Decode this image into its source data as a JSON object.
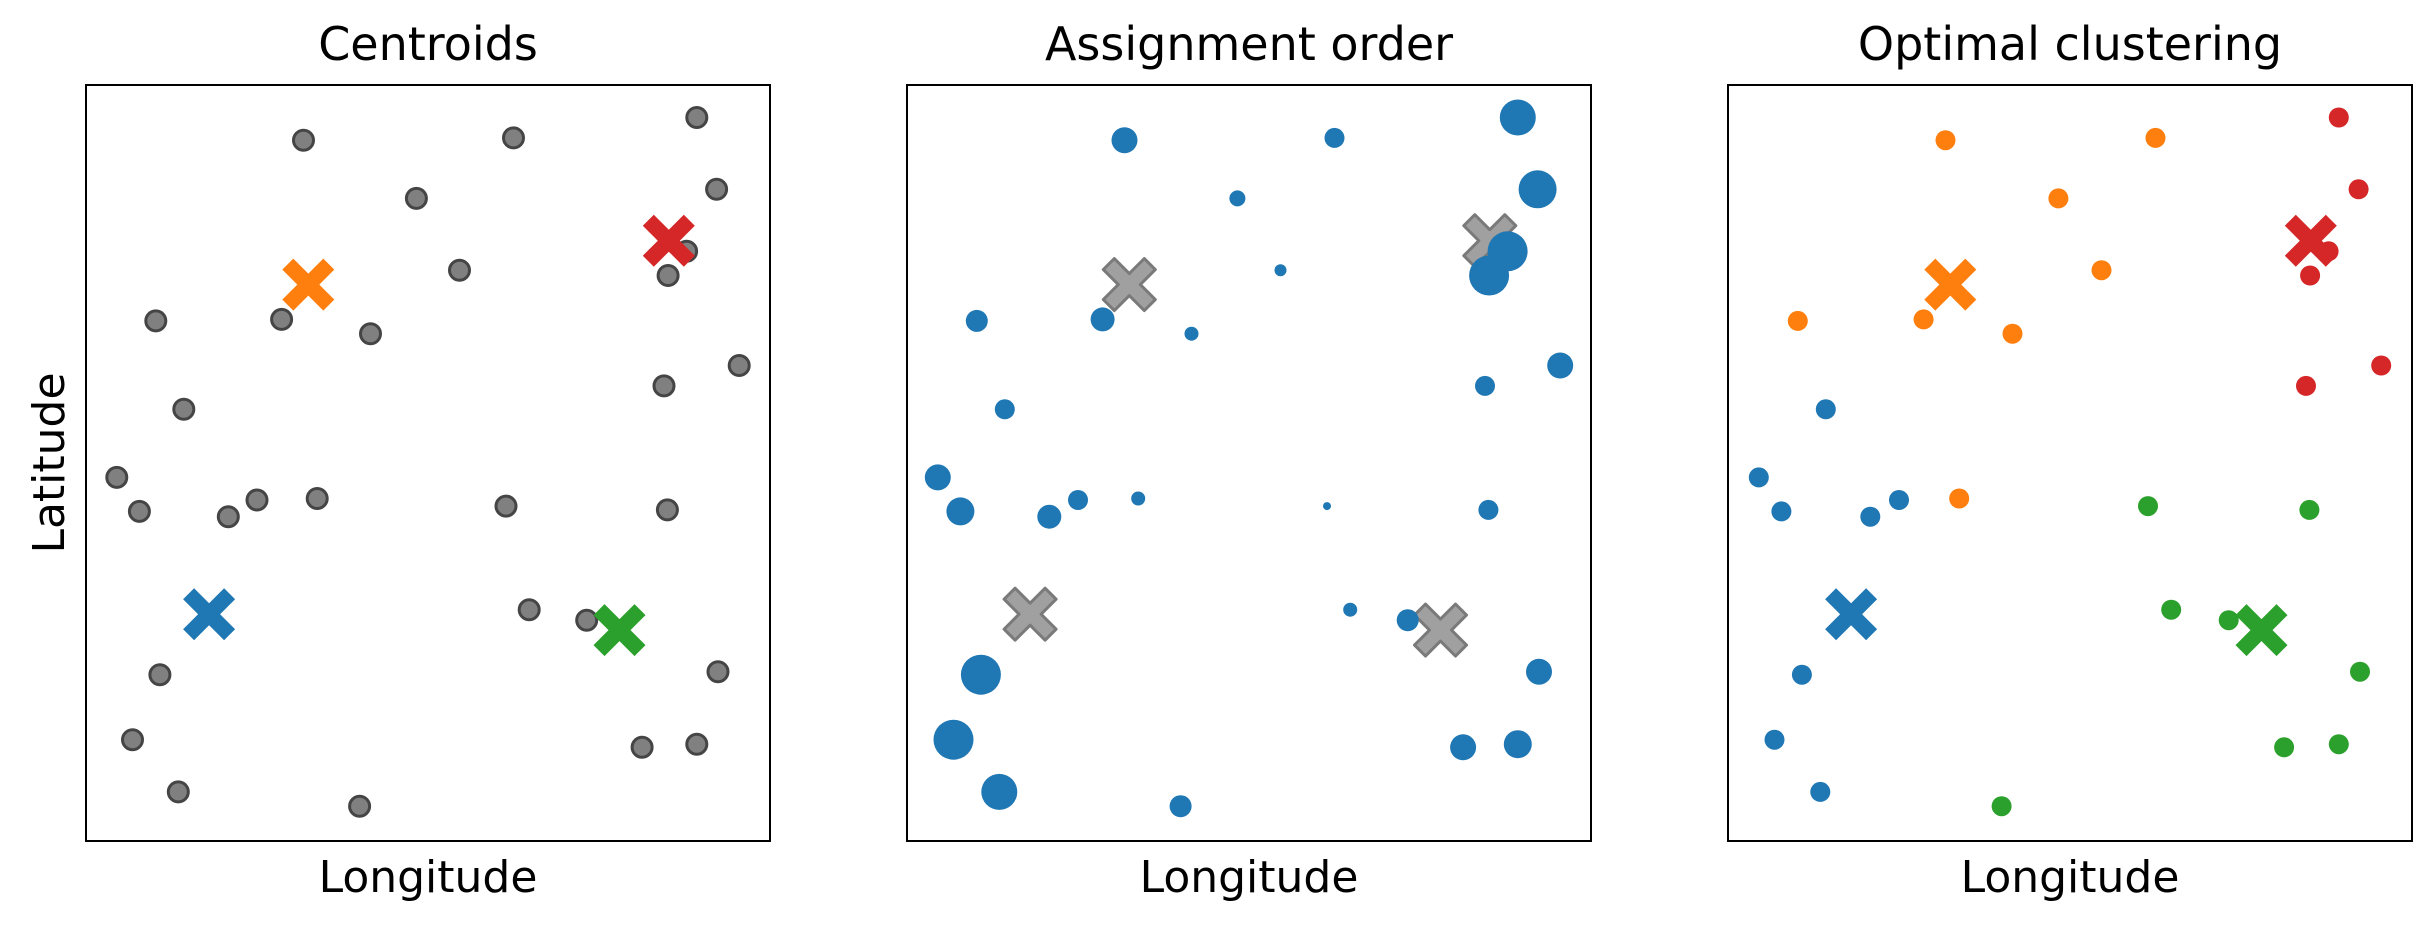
{
  "figure": {
    "background": "#ffffff"
  },
  "chart_data": [
    {
      "type": "scatter",
      "title": "Centroids",
      "xlabel": "Longitude",
      "ylabel": "Latitude",
      "xlim": [
        0,
        1
      ],
      "ylim": [
        0,
        1
      ],
      "grid": false,
      "ticks": false,
      "legend": "none",
      "point_style": "uniform",
      "point_color": "#808080",
      "points": [
        [
          0.318,
          0.927
        ],
        [
          0.625,
          0.93
        ],
        [
          0.893,
          0.957
        ],
        [
          0.483,
          0.85
        ],
        [
          0.922,
          0.862
        ],
        [
          0.102,
          0.688
        ],
        [
          0.286,
          0.69
        ],
        [
          0.416,
          0.671
        ],
        [
          0.546,
          0.755
        ],
        [
          0.851,
          0.748
        ],
        [
          0.878,
          0.78
        ],
        [
          0.143,
          0.571
        ],
        [
          0.845,
          0.602
        ],
        [
          0.955,
          0.629
        ],
        [
          0.045,
          0.481
        ],
        [
          0.078,
          0.436
        ],
        [
          0.208,
          0.429
        ],
        [
          0.25,
          0.451
        ],
        [
          0.338,
          0.453
        ],
        [
          0.614,
          0.443
        ],
        [
          0.85,
          0.438
        ],
        [
          0.648,
          0.306
        ],
        [
          0.732,
          0.292
        ],
        [
          0.108,
          0.22
        ],
        [
          0.924,
          0.224
        ],
        [
          0.068,
          0.134
        ],
        [
          0.135,
          0.065
        ],
        [
          0.4,
          0.046
        ],
        [
          0.813,
          0.124
        ],
        [
          0.893,
          0.128
        ]
      ],
      "centroids": [
        {
          "x": 0.325,
          "y": 0.736,
          "color": "#ff7f0e"
        },
        {
          "x": 0.852,
          "y": 0.794,
          "color": "#d62728"
        },
        {
          "x": 0.18,
          "y": 0.3,
          "color": "#1f77b4"
        },
        {
          "x": 0.78,
          "y": 0.279,
          "color": "#2ca02c"
        }
      ]
    },
    {
      "type": "scatter",
      "title": "Assignment order",
      "xlabel": "Longitude",
      "ylabel": "",
      "xlim": [
        0,
        1
      ],
      "ylim": [
        0,
        1
      ],
      "grid": false,
      "ticks": false,
      "legend": "none",
      "point_style": "sized",
      "point_color": "#1f77b4",
      "centroid_color": "#a0a0a0",
      "points": [
        [
          0.318,
          0.927,
          26
        ],
        [
          0.625,
          0.93,
          20
        ],
        [
          0.893,
          0.957,
          36
        ],
        [
          0.483,
          0.85,
          16
        ],
        [
          0.922,
          0.862,
          38
        ],
        [
          0.102,
          0.688,
          22
        ],
        [
          0.286,
          0.69,
          24
        ],
        [
          0.416,
          0.671,
          14
        ],
        [
          0.546,
          0.755,
          12
        ],
        [
          0.851,
          0.748,
          40
        ],
        [
          0.878,
          0.78,
          40
        ],
        [
          0.143,
          0.571,
          20
        ],
        [
          0.845,
          0.602,
          20
        ],
        [
          0.955,
          0.629,
          26
        ],
        [
          0.045,
          0.481,
          26
        ],
        [
          0.078,
          0.436,
          28
        ],
        [
          0.208,
          0.429,
          24
        ],
        [
          0.25,
          0.451,
          20
        ],
        [
          0.338,
          0.453,
          14
        ],
        [
          0.614,
          0.443,
          8
        ],
        [
          0.85,
          0.438,
          20
        ],
        [
          0.648,
          0.306,
          14
        ],
        [
          0.732,
          0.292,
          22
        ],
        [
          0.108,
          0.22,
          40
        ],
        [
          0.924,
          0.224,
          26
        ],
        [
          0.068,
          0.134,
          40
        ],
        [
          0.135,
          0.065,
          36
        ],
        [
          0.4,
          0.046,
          22
        ],
        [
          0.813,
          0.124,
          26
        ],
        [
          0.893,
          0.128,
          28
        ]
      ],
      "centroids": [
        {
          "x": 0.325,
          "y": 0.736
        },
        {
          "x": 0.852,
          "y": 0.794
        },
        {
          "x": 0.18,
          "y": 0.3
        },
        {
          "x": 0.78,
          "y": 0.279
        }
      ]
    },
    {
      "type": "scatter",
      "title": "Optimal clustering",
      "xlabel": "Longitude",
      "ylabel": "",
      "xlim": [
        0,
        1
      ],
      "ylim": [
        0,
        1
      ],
      "grid": false,
      "ticks": false,
      "legend": "none",
      "point_style": "clustered",
      "cluster_colors": [
        "#ff7f0e",
        "#d62728",
        "#1f77b4",
        "#2ca02c"
      ],
      "points": [
        [
          0.318,
          0.927,
          0
        ],
        [
          0.625,
          0.93,
          0
        ],
        [
          0.893,
          0.957,
          1
        ],
        [
          0.483,
          0.85,
          0
        ],
        [
          0.922,
          0.862,
          1
        ],
        [
          0.102,
          0.688,
          0
        ],
        [
          0.286,
          0.69,
          0
        ],
        [
          0.416,
          0.671,
          0
        ],
        [
          0.546,
          0.755,
          0
        ],
        [
          0.851,
          0.748,
          1
        ],
        [
          0.878,
          0.78,
          1
        ],
        [
          0.143,
          0.571,
          2
        ],
        [
          0.845,
          0.602,
          1
        ],
        [
          0.955,
          0.629,
          1
        ],
        [
          0.045,
          0.481,
          2
        ],
        [
          0.078,
          0.436,
          2
        ],
        [
          0.208,
          0.429,
          2
        ],
        [
          0.25,
          0.451,
          2
        ],
        [
          0.338,
          0.453,
          0
        ],
        [
          0.614,
          0.443,
          3
        ],
        [
          0.85,
          0.438,
          3
        ],
        [
          0.648,
          0.306,
          3
        ],
        [
          0.732,
          0.292,
          3
        ],
        [
          0.108,
          0.22,
          2
        ],
        [
          0.924,
          0.224,
          3
        ],
        [
          0.068,
          0.134,
          2
        ],
        [
          0.135,
          0.065,
          2
        ],
        [
          0.4,
          0.046,
          3
        ],
        [
          0.813,
          0.124,
          3
        ],
        [
          0.893,
          0.128,
          3
        ]
      ],
      "centroids": [
        {
          "x": 0.325,
          "y": 0.736,
          "color": "#ff7f0e"
        },
        {
          "x": 0.852,
          "y": 0.794,
          "color": "#d62728"
        },
        {
          "x": 0.18,
          "y": 0.3,
          "color": "#1f77b4"
        },
        {
          "x": 0.78,
          "y": 0.279,
          "color": "#2ca02c"
        }
      ]
    }
  ]
}
